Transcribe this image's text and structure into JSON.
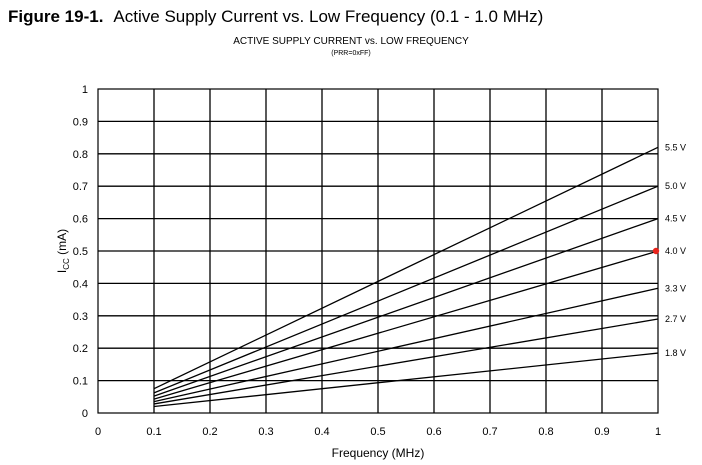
{
  "figure": {
    "label": "Figure 19-1.",
    "caption": "Active Supply Current vs. Low Frequency (0.1 - 1.0 MHz)"
  },
  "chart_data": {
    "type": "line",
    "title": "ACTIVE SUPPLY CURRENT vs. LOW FREQUENCY",
    "subtitle": "(PRR=0xFF)",
    "xlabel": "Frequency (MHz)",
    "ylabel": "I",
    "ylabel_subscript": "CC",
    "ylabel_unit": " (mA)",
    "xlim": [
      0,
      1
    ],
    "ylim": [
      0,
      1
    ],
    "xticks": [
      "0",
      "0.1",
      "0.2",
      "0.3",
      "0.4",
      "0.5",
      "0.6",
      "0.7",
      "0.8",
      "0.9",
      "1"
    ],
    "yticks": [
      "0",
      "0.1",
      "0.2",
      "0.3",
      "0.4",
      "0.5",
      "0.6",
      "0.7",
      "0.8",
      "0.9",
      "1"
    ],
    "grid": true,
    "series": [
      {
        "name": "5.5 V",
        "x": [
          0.1,
          1.0
        ],
        "y": [
          0.075,
          0.82
        ]
      },
      {
        "name": "5.0 V",
        "x": [
          0.1,
          1.0
        ],
        "y": [
          0.062,
          0.7
        ]
      },
      {
        "name": "4.5 V",
        "x": [
          0.1,
          1.0
        ],
        "y": [
          0.052,
          0.6
        ]
      },
      {
        "name": "4.0 V",
        "x": [
          0.1,
          1.0
        ],
        "y": [
          0.043,
          0.5
        ]
      },
      {
        "name": "3.3 V",
        "x": [
          0.1,
          1.0
        ],
        "y": [
          0.035,
          0.385
        ]
      },
      {
        "name": "2.7 V",
        "x": [
          0.1,
          1.0
        ],
        "y": [
          0.028,
          0.29
        ]
      },
      {
        "name": "1.8 V",
        "x": [
          0.1,
          1.0
        ],
        "y": [
          0.02,
          0.185
        ]
      }
    ],
    "marker_color": "#e8241c",
    "line_color": "#000000"
  }
}
